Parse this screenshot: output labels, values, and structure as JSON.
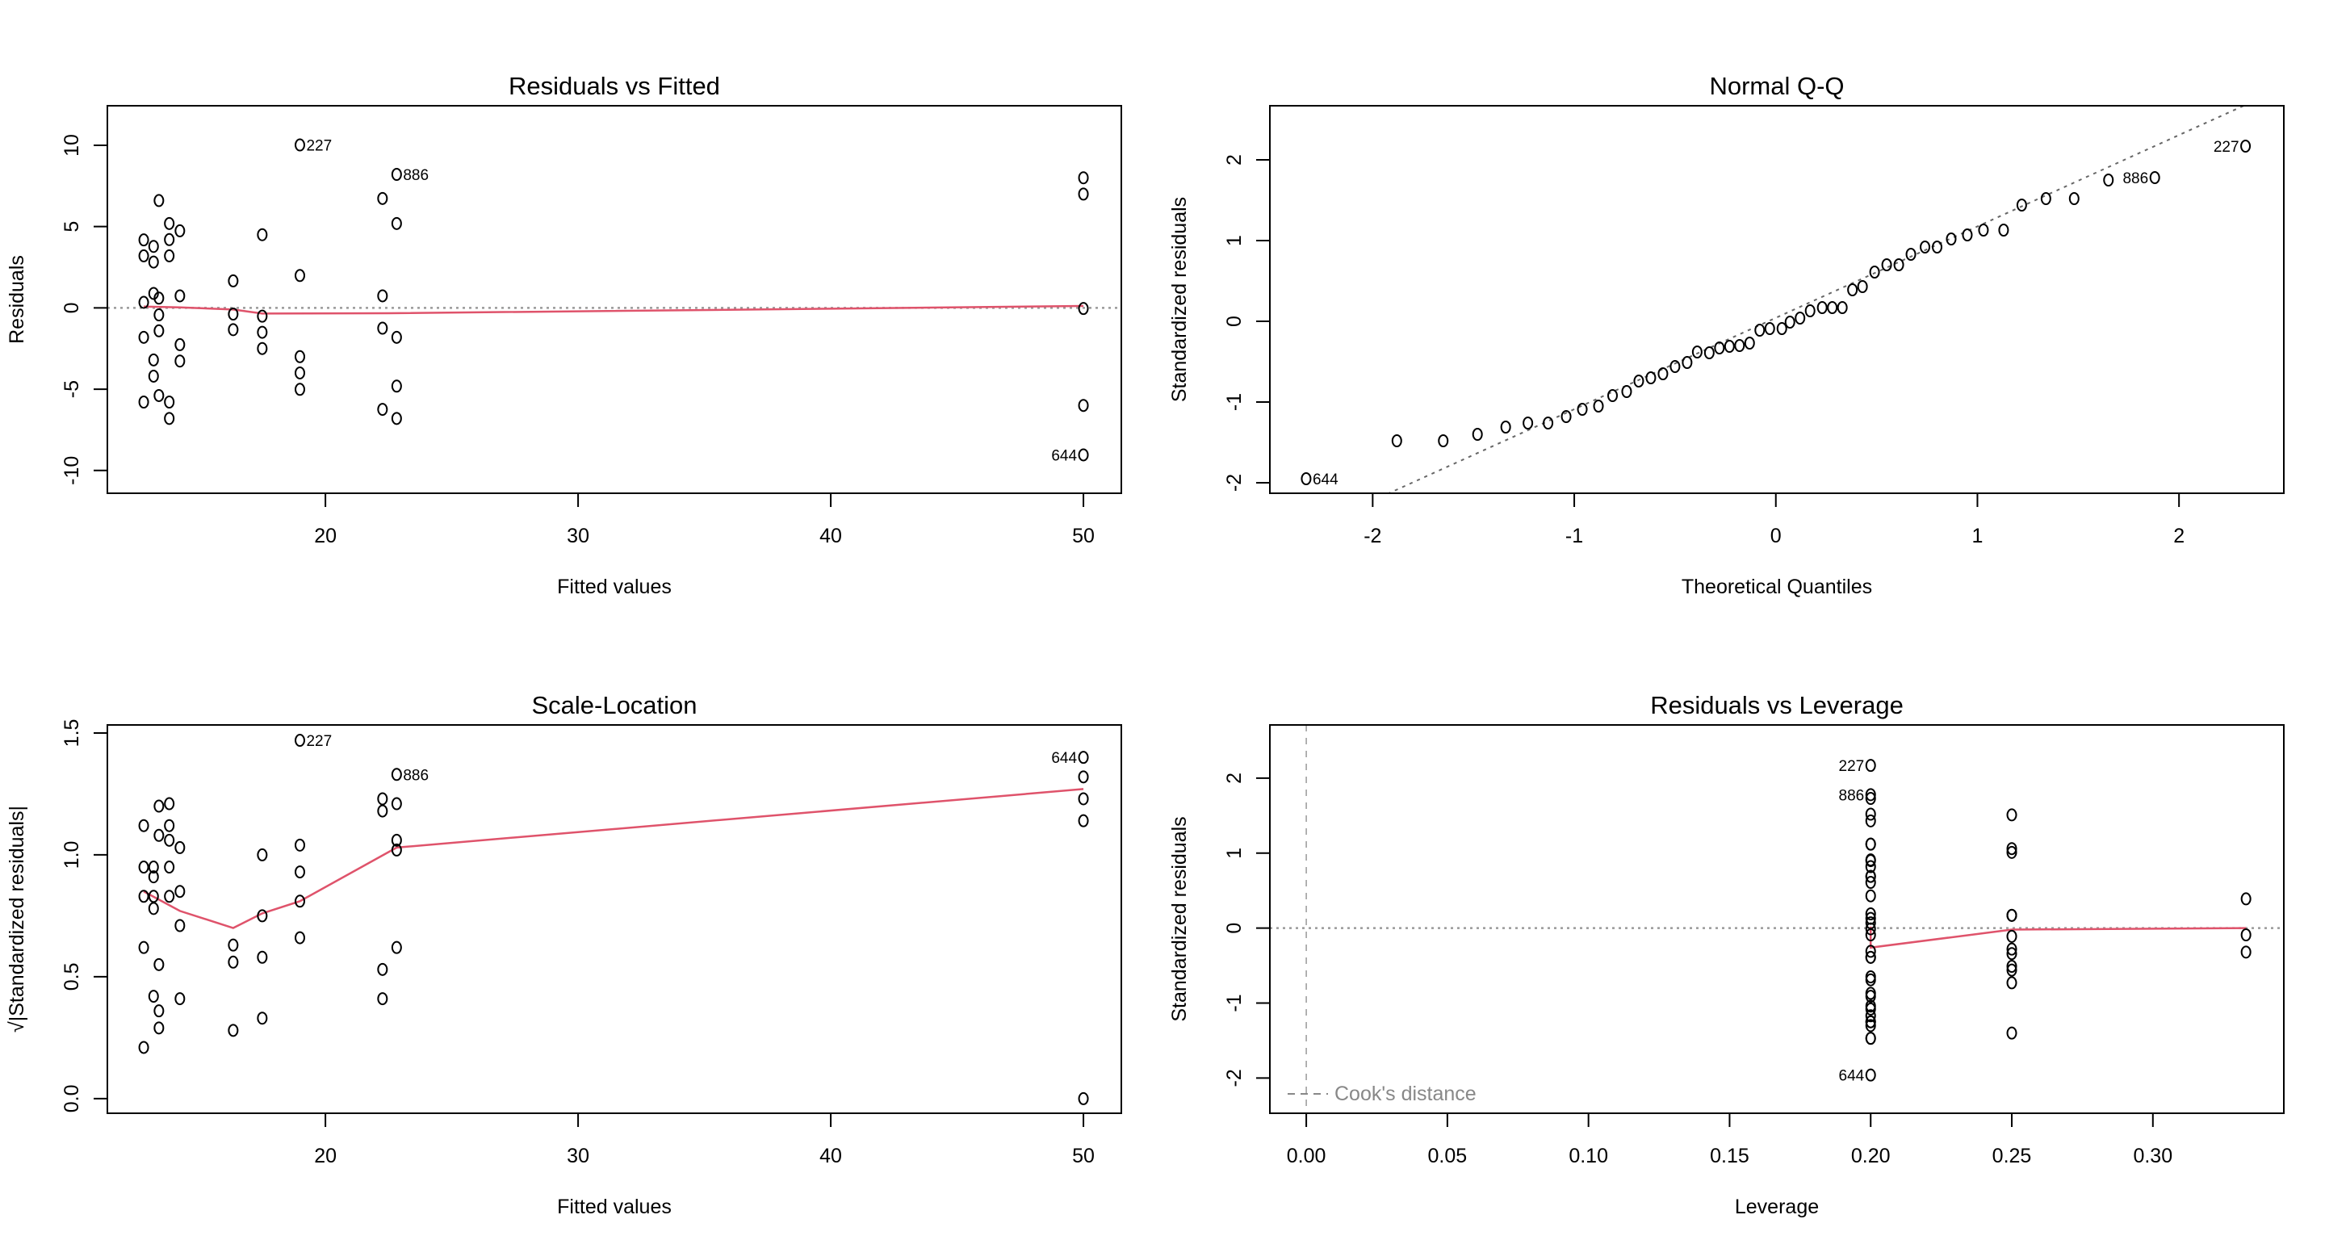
{
  "colors": {
    "smoother": "#DF536B",
    "reference": "#999999",
    "cook": "#888888",
    "points": "#000000"
  },
  "chart_data": [
    {
      "type": "scatter",
      "title": "Residuals vs Fitted",
      "xlabel": "Fitted values",
      "ylabel": "Residuals",
      "xlim": [
        11.37,
        51.5
      ],
      "ylim": [
        -11.4,
        12.43
      ],
      "xticks": [
        20,
        30,
        40,
        50
      ],
      "xtick_labels": [
        "20",
        "30",
        "40",
        "50"
      ],
      "yticks": [
        -10,
        -5,
        0,
        5,
        10
      ],
      "ytick_labels": [
        "-10",
        "-5",
        "0",
        "5",
        "10"
      ],
      "hline": {
        "y": 0,
        "style": "dotted"
      },
      "x": [
        12.81,
        12.81,
        12.81,
        12.81,
        12.81,
        13.2,
        13.2,
        13.2,
        13.2,
        13.2,
        13.41,
        13.41,
        13.41,
        13.41,
        13.41,
        13.82,
        13.82,
        13.82,
        13.82,
        13.82,
        14.24,
        14.24,
        14.24,
        14.24,
        16.35,
        16.35,
        16.35,
        17.5,
        17.5,
        17.5,
        17.5,
        18.99,
        18.99,
        18.99,
        18.99,
        18.99,
        22.26,
        22.26,
        22.26,
        22.26,
        22.82,
        22.82,
        22.82,
        22.82,
        22.82,
        50,
        50,
        50,
        50,
        50
      ],
      "y": [
        4.18,
        3.2,
        0.34,
        -1.81,
        -5.79,
        3.78,
        2.82,
        0.89,
        -3.2,
        -4.2,
        6.6,
        0.6,
        -0.43,
        -1.41,
        -5.39,
        5.19,
        4.2,
        3.2,
        -5.79,
        -6.8,
        4.74,
        0.74,
        -2.26,
        -3.27,
        1.66,
        -0.38,
        -1.34,
        4.5,
        -0.51,
        -1.5,
        -2.5,
        10.02,
        1.99,
        -3.0,
        -4.0,
        -5.01,
        6.73,
        0.74,
        -1.25,
        -6.24,
        8.21,
        5.19,
        -1.81,
        -4.81,
        -6.8,
        8.0,
        7.0,
        -0.04,
        -6.0,
        -9.04
      ],
      "smoother": {
        "x": [
          12.81,
          14.24,
          16.35,
          17.5,
          22.5,
          40,
          50
        ],
        "y": [
          0.08,
          0.03,
          -0.1,
          -0.35,
          -0.33,
          -0.05,
          0.12
        ]
      },
      "point_labels": [
        {
          "text": "227",
          "x": 18.99,
          "y": 10.02,
          "side": "right"
        },
        {
          "text": "886",
          "x": 22.82,
          "y": 8.21,
          "side": "right"
        },
        {
          "text": "644",
          "x": 50,
          "y": -9.04,
          "side": "left"
        }
      ]
    },
    {
      "type": "scatter",
      "title": "Normal Q-Q",
      "xlabel": "Theoretical Quantiles",
      "ylabel": "Standardized residuals",
      "xlim": [
        -2.51,
        2.52
      ],
      "ylim": [
        -2.13,
        2.67
      ],
      "xticks": [
        -2,
        -1,
        0,
        1,
        2
      ],
      "xtick_labels": [
        "-2",
        "-1",
        "0",
        "1",
        "2"
      ],
      "yticks": [
        -2,
        -1,
        0,
        1,
        2
      ],
      "ytick_labels": [
        "-2",
        "-1",
        "0",
        "1",
        "2"
      ],
      "qqline": {
        "intercept": 0.043,
        "slope": 1.132,
        "style": "dotted"
      },
      "x": [
        -2.33,
        -1.88,
        -1.65,
        -1.48,
        -1.34,
        -1.23,
        -1.13,
        -1.04,
        -0.96,
        -0.88,
        -0.81,
        -0.74,
        -0.68,
        -0.62,
        -0.56,
        -0.5,
        -0.44,
        -0.39,
        -0.33,
        -0.28,
        -0.23,
        -0.18,
        -0.13,
        -0.08,
        -0.03,
        0.03,
        0.07,
        0.12,
        0.17,
        0.23,
        0.28,
        0.33,
        0.38,
        0.43,
        0.49,
        0.55,
        0.61,
        0.67,
        0.74,
        0.8,
        0.87,
        0.95,
        1.03,
        1.13,
        1.22,
        1.34,
        1.48,
        1.65,
        1.88,
        2.33
      ],
      "y": [
        -1.95,
        -1.48,
        -1.48,
        -1.4,
        -1.31,
        -1.26,
        -1.26,
        -1.18,
        -1.09,
        -1.05,
        -0.92,
        -0.87,
        -0.74,
        -0.7,
        -0.65,
        -0.56,
        -0.51,
        -0.38,
        -0.39,
        -0.33,
        -0.31,
        -0.3,
        -0.27,
        -0.11,
        -0.09,
        -0.09,
        -0.01,
        0.04,
        0.13,
        0.17,
        0.17,
        0.17,
        0.39,
        0.43,
        0.61,
        0.7,
        0.7,
        0.83,
        0.92,
        0.92,
        1.02,
        1.07,
        1.13,
        1.13,
        1.44,
        1.52,
        1.52,
        1.75,
        1.78,
        2.17
      ],
      "point_labels": [
        {
          "text": "644",
          "x": -2.33,
          "y": -1.95,
          "side": "right"
        },
        {
          "text": "886",
          "x": 1.88,
          "y": 1.78,
          "side": "left"
        },
        {
          "text": "227",
          "x": 2.33,
          "y": 2.17,
          "side": "left"
        }
      ]
    },
    {
      "type": "scatter",
      "title": "Scale-Location",
      "xlabel": "Fitted values",
      "ylabel": "√|Standardized residuals|",
      "xlim": [
        11.37,
        51.5
      ],
      "ylim": [
        -0.06,
        1.533
      ],
      "xticks": [
        20,
        30,
        40,
        50
      ],
      "xtick_labels": [
        "20",
        "30",
        "40",
        "50"
      ],
      "yticks": [
        0,
        0.5,
        1.0,
        1.5
      ],
      "ytick_labels": [
        "0.0",
        "0.5",
        "1.0",
        "1.5"
      ],
      "x": [
        12.81,
        12.81,
        12.81,
        12.81,
        12.81,
        13.2,
        13.2,
        13.2,
        13.2,
        13.2,
        13.41,
        13.41,
        13.41,
        13.41,
        13.41,
        13.82,
        13.82,
        13.82,
        13.82,
        13.82,
        14.24,
        14.24,
        14.24,
        14.24,
        16.35,
        16.35,
        16.35,
        17.5,
        17.5,
        17.5,
        17.5,
        18.99,
        18.99,
        18.99,
        18.99,
        18.99,
        22.26,
        22.26,
        22.26,
        22.26,
        22.82,
        22.82,
        22.82,
        22.82,
        22.82,
        50,
        50,
        50,
        50,
        50
      ],
      "y": [
        1.12,
        0.95,
        0.83,
        0.62,
        0.21,
        0.95,
        0.91,
        0.83,
        0.78,
        0.42,
        1.2,
        1.08,
        0.55,
        0.36,
        0.29,
        1.21,
        1.12,
        1.06,
        0.95,
        0.83,
        1.03,
        0.85,
        0.71,
        0.41,
        0.63,
        0.56,
        0.28,
        1.0,
        0.75,
        0.58,
        0.33,
        1.47,
        1.04,
        0.93,
        0.81,
        0.66,
        1.23,
        1.18,
        0.53,
        0.41,
        1.33,
        1.21,
        1.06,
        1.02,
        0.62,
        1.4,
        1.32,
        1.23,
        1.14,
        0.0
      ],
      "smoother": {
        "x": [
          12.81,
          14.24,
          16.35,
          17.5,
          18.99,
          22.82,
          50
        ],
        "y": [
          0.85,
          0.77,
          0.7,
          0.76,
          0.81,
          1.03,
          1.27
        ]
      },
      "point_labels": [
        {
          "text": "227",
          "x": 18.99,
          "y": 1.47,
          "side": "right"
        },
        {
          "text": "886",
          "x": 22.82,
          "y": 1.33,
          "side": "right"
        },
        {
          "text": "644",
          "x": 50,
          "y": 1.4,
          "side": "left"
        }
      ]
    },
    {
      "type": "scatter",
      "title": "Residuals vs Leverage",
      "xlabel": "Leverage",
      "ylabel": "Standardized residuals",
      "xlim": [
        -0.0129,
        0.3464
      ],
      "ylim": [
        -2.47,
        2.71
      ],
      "xticks": [
        0,
        0.05,
        0.1,
        0.15,
        0.2,
        0.25,
        0.3
      ],
      "xtick_labels": [
        "0.00",
        "0.05",
        "0.10",
        "0.15",
        "0.20",
        "0.25",
        "0.30"
      ],
      "yticks": [
        -2,
        -1,
        0,
        1,
        2
      ],
      "ytick_labels": [
        "-2",
        "-1",
        "0",
        "1",
        "2"
      ],
      "hline": {
        "y": 0,
        "style": "dotted"
      },
      "vline": {
        "x": 0,
        "style": "dashed"
      },
      "legend": {
        "text": "Cook's distance",
        "position": "bottom-left",
        "line": "dashed"
      },
      "x": [
        0.2,
        0.2,
        0.2,
        0.2,
        0.2,
        0.2,
        0.2,
        0.2,
        0.2,
        0.2,
        0.2,
        0.2,
        0.2,
        0.2,
        0.2,
        0.2,
        0.2,
        0.2,
        0.2,
        0.2,
        0.2,
        0.2,
        0.2,
        0.2,
        0.2,
        0.2,
        0.2,
        0.2,
        0.2,
        0.2,
        0.2,
        0.2,
        0.2,
        0.2,
        0.2,
        0.25,
        0.25,
        0.25,
        0.25,
        0.25,
        0.25,
        0.25,
        0.25,
        0.25,
        0.25,
        0.25,
        0.25,
        0.333,
        0.333,
        0.333
      ],
      "y": [
        0.9,
        0.69,
        0.07,
        -0.39,
        -1.25,
        0.82,
        0.61,
        0.19,
        -0.69,
        -0.91,
        1.43,
        0.13,
        -0.09,
        -0.31,
        -1.17,
        1.12,
        0.91,
        0.69,
        -1.25,
        -1.47,
        2.17,
        0.43,
        -0.65,
        -0.87,
        -1.08,
        1.78,
        1.12,
        -0.39,
        -1.04,
        -1.47,
        1.73,
        1.52,
        -0.01,
        -1.3,
        -1.96,
        1.06,
        0.17,
        -0.51,
        -0.73,
        1.01,
        -0.11,
        -0.34,
        -0.56,
        1.51,
        0.17,
        -0.28,
        -1.4,
        0.39,
        -0.09,
        -0.32
      ],
      "smoother": {
        "x": [
          0.2,
          0.2,
          0.25,
          0.333
        ],
        "y": [
          0.02,
          -0.26,
          -0.02,
          0.0
        ]
      },
      "point_labels": [
        {
          "text": "227",
          "x": 0.2,
          "y": 2.17,
          "side": "left"
        },
        {
          "text": "886",
          "x": 0.2,
          "y": 1.78,
          "side": "left"
        },
        {
          "text": "644",
          "x": 0.2,
          "y": -1.96,
          "side": "left"
        }
      ]
    }
  ]
}
